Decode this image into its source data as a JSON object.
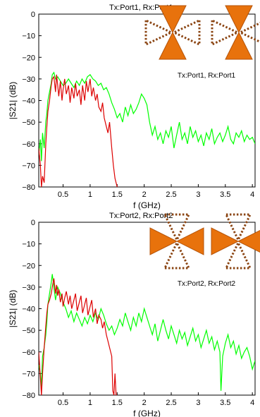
{
  "chart_data": [
    {
      "type": "line",
      "title": "Tx:Port1, Rx:Port1",
      "annotation": "Tx:Port1, Rx:Port1",
      "xlabel": "f (GHz)",
      "ylabel": "|S21| (dB)",
      "xlim": [
        0.05,
        4.05
      ],
      "ylim": [
        -80,
        0
      ],
      "xticks": [
        "0.5",
        "1",
        "1.5",
        "2",
        "2.5",
        "3",
        "3.5",
        "4"
      ],
      "yticks": [
        "0",
        "−10",
        "−20",
        "−30",
        "−40",
        "−50",
        "−60",
        "−70",
        "−80"
      ],
      "grid": false,
      "series": [
        {
          "color": "#00ff00",
          "x": [
            0.05,
            0.08,
            0.1,
            0.12,
            0.15,
            0.18,
            0.2,
            0.22,
            0.25,
            0.28,
            0.3,
            0.33,
            0.36,
            0.4,
            0.45,
            0.5,
            0.55,
            0.6,
            0.65,
            0.7,
            0.75,
            0.8,
            0.85,
            0.9,
            0.95,
            1.0,
            1.05,
            1.1,
            1.15,
            1.2,
            1.25,
            1.3,
            1.35,
            1.4,
            1.45,
            1.5,
            1.55,
            1.6,
            1.65,
            1.7,
            1.75,
            1.8,
            1.85,
            1.9,
            1.95,
            2.0,
            2.05,
            2.1,
            2.15,
            2.2,
            2.25,
            2.3,
            2.35,
            2.4,
            2.45,
            2.5,
            2.55,
            2.6,
            2.65,
            2.7,
            2.75,
            2.8,
            2.85,
            2.9,
            2.95,
            3.0,
            3.05,
            3.1,
            3.15,
            3.2,
            3.25,
            3.3,
            3.35,
            3.4,
            3.45,
            3.5,
            3.55,
            3.6,
            3.65,
            3.7,
            3.75,
            3.8,
            3.85,
            3.9,
            3.95,
            4.0,
            4.05
          ],
          "y": [
            -65,
            -58,
            -68,
            -55,
            -62,
            -50,
            -46,
            -40,
            -36,
            -32,
            -28,
            -27,
            -30,
            -29,
            -31,
            -33,
            -32,
            -30,
            -32,
            -34,
            -31,
            -33,
            -30,
            -32,
            -29,
            -28,
            -30,
            -31,
            -33,
            -32,
            -35,
            -34,
            -37,
            -41,
            -44,
            -48,
            -46,
            -50,
            -43,
            -47,
            -42,
            -46,
            -44,
            -41,
            -37,
            -39,
            -42,
            -50,
            -56,
            -52,
            -58,
            -55,
            -60,
            -54,
            -57,
            -52,
            -62,
            -56,
            -50,
            -58,
            -55,
            -60,
            -52,
            -57,
            -54,
            -59,
            -56,
            -61,
            -55,
            -58,
            -53,
            -60,
            -57,
            -55,
            -59,
            -56,
            -52,
            -58,
            -60,
            -55,
            -57,
            -54,
            -59,
            -56,
            -58,
            -57,
            -60
          ]
        },
        {
          "color": "#dd0000",
          "x": [
            0.05,
            0.08,
            0.1,
            0.12,
            0.15,
            0.18,
            0.2,
            0.22,
            0.25,
            0.28,
            0.3,
            0.33,
            0.36,
            0.38,
            0.4,
            0.42,
            0.45,
            0.48,
            0.5,
            0.53,
            0.56,
            0.6,
            0.63,
            0.66,
            0.7,
            0.73,
            0.76,
            0.8,
            0.83,
            0.86,
            0.9,
            0.93,
            0.96,
            1.0,
            1.03,
            1.06,
            1.1,
            1.13,
            1.16,
            1.2,
            1.23,
            1.26,
            1.3,
            1.33,
            1.36,
            1.4,
            1.43,
            1.46,
            1.5
          ],
          "y": [
            -62,
            -70,
            -80,
            -75,
            -78,
            -60,
            -52,
            -45,
            -40,
            -33,
            -30,
            -29,
            -36,
            -28,
            -33,
            -38,
            -31,
            -40,
            -35,
            -30,
            -37,
            -33,
            -41,
            -34,
            -39,
            -32,
            -38,
            -35,
            -42,
            -33,
            -40,
            -31,
            -36,
            -30,
            -38,
            -34,
            -40,
            -37,
            -43,
            -45,
            -41,
            -48,
            -52,
            -55,
            -50,
            -62,
            -70,
            -76,
            -80
          ]
        }
      ]
    },
    {
      "type": "line",
      "title": "Tx:Port2, Rx:Port2",
      "annotation": "Tx:Port2, Rx:Port2",
      "xlabel": "f (GHz)",
      "ylabel": "|S21| (dB)",
      "xlim": [
        0.05,
        4.05
      ],
      "ylim": [
        -80,
        0
      ],
      "xticks": [
        "0.5",
        "1",
        "1.5",
        "2",
        "2.5",
        "3",
        "3.5",
        "4"
      ],
      "yticks": [
        "0",
        "−10",
        "−20",
        "−30",
        "−40",
        "−50",
        "−60",
        "−70",
        "−80"
      ],
      "grid": false,
      "series": [
        {
          "color": "#00ff00",
          "x": [
            0.05,
            0.08,
            0.1,
            0.12,
            0.15,
            0.18,
            0.2,
            0.22,
            0.25,
            0.28,
            0.3,
            0.33,
            0.36,
            0.4,
            0.45,
            0.5,
            0.55,
            0.6,
            0.65,
            0.7,
            0.75,
            0.8,
            0.85,
            0.9,
            0.95,
            1.0,
            1.05,
            1.1,
            1.15,
            1.2,
            1.25,
            1.3,
            1.35,
            1.4,
            1.45,
            1.5,
            1.55,
            1.6,
            1.65,
            1.7,
            1.75,
            1.8,
            1.85,
            1.9,
            1.95,
            2.0,
            2.05,
            2.1,
            2.15,
            2.2,
            2.25,
            2.3,
            2.35,
            2.4,
            2.45,
            2.5,
            2.55,
            2.6,
            2.65,
            2.7,
            2.75,
            2.8,
            2.85,
            2.9,
            2.95,
            3.0,
            3.05,
            3.1,
            3.15,
            3.2,
            3.25,
            3.3,
            3.35,
            3.4,
            3.42,
            3.45,
            3.5,
            3.55,
            3.6,
            3.65,
            3.7,
            3.75,
            3.8,
            3.85,
            3.9,
            3.95,
            4.0,
            4.05
          ],
          "y": [
            -66,
            -70,
            -76,
            -62,
            -58,
            -52,
            -46,
            -38,
            -33,
            -28,
            -24,
            -30,
            -36,
            -30,
            -33,
            -37,
            -40,
            -44,
            -41,
            -46,
            -42,
            -45,
            -48,
            -44,
            -47,
            -43,
            -46,
            -42,
            -45,
            -40,
            -43,
            -47,
            -50,
            -48,
            -52,
            -49,
            -45,
            -48,
            -42,
            -46,
            -50,
            -44,
            -48,
            -42,
            -46,
            -40,
            -44,
            -48,
            -52,
            -47,
            -55,
            -50,
            -45,
            -50,
            -54,
            -48,
            -52,
            -56,
            -50,
            -54,
            -51,
            -57,
            -53,
            -49,
            -55,
            -52,
            -58,
            -54,
            -50,
            -56,
            -53,
            -59,
            -55,
            -60,
            -78,
            -62,
            -56,
            -52,
            -58,
            -55,
            -61,
            -57,
            -63,
            -60,
            -58,
            -62,
            -68,
            -64
          ]
        },
        {
          "color": "#dd0000",
          "x": [
            0.05,
            0.08,
            0.1,
            0.12,
            0.15,
            0.18,
            0.2,
            0.22,
            0.25,
            0.28,
            0.3,
            0.33,
            0.36,
            0.38,
            0.4,
            0.42,
            0.45,
            0.48,
            0.5,
            0.53,
            0.56,
            0.6,
            0.63,
            0.66,
            0.7,
            0.73,
            0.76,
            0.8,
            0.83,
            0.86,
            0.9,
            0.93,
            0.96,
            1.0,
            1.03,
            1.06,
            1.1,
            1.13,
            1.16,
            1.2,
            1.23,
            1.26,
            1.3,
            1.33,
            1.36,
            1.4,
            1.42,
            1.44,
            1.46,
            1.48,
            1.5
          ],
          "y": [
            -60,
            -72,
            -80,
            -70,
            -58,
            -48,
            -42,
            -38,
            -36,
            -33,
            -30,
            -26,
            -33,
            -29,
            -34,
            -31,
            -37,
            -33,
            -39,
            -35,
            -32,
            -38,
            -34,
            -40,
            -36,
            -33,
            -41,
            -37,
            -34,
            -42,
            -38,
            -35,
            -43,
            -39,
            -36,
            -44,
            -40,
            -47,
            -43,
            -45,
            -49,
            -46,
            -52,
            -55,
            -58,
            -62,
            -78,
            -80,
            -70,
            -80,
            -80
          ]
        }
      ]
    }
  ]
}
